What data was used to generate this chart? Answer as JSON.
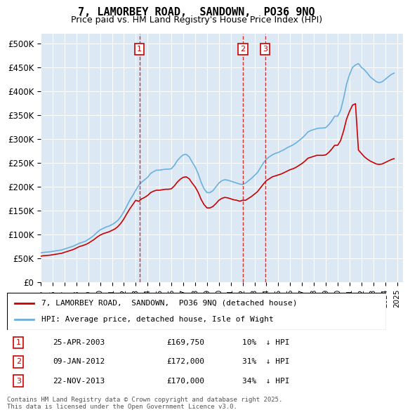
{
  "title": "7, LAMORBEY ROAD,  SANDOWN,  PO36 9NQ",
  "subtitle": "Price paid vs. HM Land Registry's House Price Index (HPI)",
  "ylabel_ticks": [
    "£0",
    "£50K",
    "£100K",
    "£150K",
    "£200K",
    "£250K",
    "£300K",
    "£350K",
    "£400K",
    "£450K",
    "£500K"
  ],
  "ytick_values": [
    0,
    50000,
    100000,
    150000,
    200000,
    250000,
    300000,
    350000,
    400000,
    450000,
    500000
  ],
  "ylim": [
    0,
    520000
  ],
  "xlim_start": 1995,
  "xlim_end": 2025.5,
  "background_color": "#dce9f5",
  "plot_bg_color": "#dce9f5",
  "hpi_color": "#6ab0de",
  "price_color": "#cc0000",
  "sale_marker_color": "#cc0000",
  "vline_color": "#cc0000",
  "box_color": "#cc0000",
  "legend_box": true,
  "legend_entries": [
    "7, LAMORBEY ROAD,  SANDOWN,  PO36 9NQ (detached house)",
    "HPI: Average price, detached house, Isle of Wight"
  ],
  "sales": [
    {
      "num": 1,
      "date": "25-APR-2003",
      "price": 169750,
      "pct": "10%",
      "dir": "↓",
      "year": 2003.31
    },
    {
      "num": 2,
      "date": "09-JAN-2012",
      "price": 172000,
      "pct": "31%",
      "dir": "↓",
      "year": 2012.03
    },
    {
      "num": 3,
      "date": "22-NOV-2013",
      "price": 170000,
      "pct": "34%",
      "dir": "↓",
      "year": 2013.89
    }
  ],
  "footer": "Contains HM Land Registry data © Crown copyright and database right 2025.\nThis data is licensed under the Open Government Licence v3.0.",
  "hpi_data_x": [
    1995,
    1995.25,
    1995.5,
    1995.75,
    1996,
    1996.25,
    1996.5,
    1996.75,
    1997,
    1997.25,
    1997.5,
    1997.75,
    1998,
    1998.25,
    1998.5,
    1998.75,
    1999,
    1999.25,
    1999.5,
    1999.75,
    2000,
    2000.25,
    2000.5,
    2000.75,
    2001,
    2001.25,
    2001.5,
    2001.75,
    2002,
    2002.25,
    2002.5,
    2002.75,
    2003,
    2003.25,
    2003.5,
    2003.75,
    2004,
    2004.25,
    2004.5,
    2004.75,
    2005,
    2005.25,
    2005.5,
    2005.75,
    2006,
    2006.25,
    2006.5,
    2006.75,
    2007,
    2007.25,
    2007.5,
    2007.75,
    2008,
    2008.25,
    2008.5,
    2008.75,
    2009,
    2009.25,
    2009.5,
    2009.75,
    2010,
    2010.25,
    2010.5,
    2010.75,
    2011,
    2011.25,
    2011.5,
    2011.75,
    2012,
    2012.25,
    2012.5,
    2012.75,
    2013,
    2013.25,
    2013.5,
    2013.75,
    2014,
    2014.25,
    2014.5,
    2014.75,
    2015,
    2015.25,
    2015.5,
    2015.75,
    2016,
    2016.25,
    2016.5,
    2016.75,
    2017,
    2017.25,
    2017.5,
    2017.75,
    2018,
    2018.25,
    2018.5,
    2018.75,
    2019,
    2019.25,
    2019.5,
    2019.75,
    2020,
    2020.25,
    2020.5,
    2020.75,
    2021,
    2021.25,
    2021.5,
    2021.75,
    2022,
    2022.25,
    2022.5,
    2022.75,
    2023,
    2023.25,
    2023.5,
    2023.75,
    2024,
    2024.25,
    2024.5,
    2024.75
  ],
  "hpi_data_y": [
    62000,
    63000,
    63500,
    64000,
    65000,
    66000,
    67000,
    68000,
    70000,
    72000,
    74000,
    76000,
    79000,
    82000,
    84000,
    86000,
    90000,
    94000,
    99000,
    105000,
    110000,
    113000,
    116000,
    118000,
    121000,
    125000,
    130000,
    138000,
    148000,
    160000,
    172000,
    182000,
    193000,
    203000,
    210000,
    215000,
    220000,
    228000,
    232000,
    235000,
    235000,
    236000,
    237000,
    237000,
    238000,
    245000,
    255000,
    262000,
    267000,
    268000,
    263000,
    252000,
    242000,
    228000,
    210000,
    196000,
    188000,
    188000,
    192000,
    200000,
    208000,
    213000,
    215000,
    214000,
    212000,
    210000,
    208000,
    206000,
    205000,
    208000,
    213000,
    218000,
    224000,
    230000,
    240000,
    250000,
    258000,
    263000,
    267000,
    270000,
    272000,
    275000,
    278000,
    282000,
    285000,
    288000,
    292000,
    297000,
    302000,
    308000,
    315000,
    318000,
    320000,
    322000,
    323000,
    323000,
    324000,
    330000,
    338000,
    348000,
    348000,
    360000,
    385000,
    415000,
    435000,
    450000,
    455000,
    458000,
    450000,
    445000,
    438000,
    430000,
    425000,
    420000,
    418000,
    420000,
    425000,
    430000,
    435000,
    438000
  ],
  "price_data_x": [
    1995,
    1995.25,
    1995.5,
    1995.75,
    1996,
    1996.25,
    1996.5,
    1996.75,
    1997,
    1997.25,
    1997.5,
    1997.75,
    1998,
    1998.25,
    1998.5,
    1998.75,
    1999,
    1999.25,
    1999.5,
    1999.75,
    2000,
    2000.25,
    2000.5,
    2000.75,
    2001,
    2001.25,
    2001.5,
    2001.75,
    2002,
    2002.25,
    2002.5,
    2002.75,
    2003,
    2003.25,
    2003.5,
    2003.75,
    2004,
    2004.25,
    2004.5,
    2004.75,
    2005,
    2005.25,
    2005.5,
    2005.75,
    2006,
    2006.25,
    2006.5,
    2006.75,
    2007,
    2007.25,
    2007.5,
    2007.75,
    2008,
    2008.25,
    2008.5,
    2008.75,
    2009,
    2009.25,
    2009.5,
    2009.75,
    2010,
    2010.25,
    2010.5,
    2010.75,
    2011,
    2011.25,
    2011.5,
    2011.75,
    2012,
    2012.25,
    2012.5,
    2012.75,
    2013,
    2013.25,
    2013.5,
    2013.75,
    2014,
    2014.25,
    2014.5,
    2014.75,
    2015,
    2015.25,
    2015.5,
    2015.75,
    2016,
    2016.25,
    2016.5,
    2016.75,
    2017,
    2017.25,
    2017.5,
    2017.75,
    2018,
    2018.25,
    2018.5,
    2018.75,
    2019,
    2019.25,
    2019.5,
    2019.75,
    2020,
    2020.25,
    2020.5,
    2020.75,
    2021,
    2021.25,
    2021.5,
    2021.75,
    2022,
    2022.25,
    2022.5,
    2022.75,
    2023,
    2023.25,
    2023.5,
    2023.75,
    2024,
    2024.25,
    2024.5,
    2024.75
  ],
  "price_data_y": [
    55000,
    56000,
    56500,
    57000,
    58000,
    59000,
    60000,
    61000,
    63000,
    65000,
    67000,
    69000,
    72000,
    75000,
    77000,
    79000,
    82000,
    86000,
    90000,
    95000,
    99000,
    102000,
    104000,
    106000,
    109000,
    112000,
    117000,
    124000,
    133000,
    144000,
    154000,
    163000,
    172000,
    169750,
    175000,
    178000,
    182000,
    188000,
    191000,
    193000,
    193000,
    194000,
    195000,
    195000,
    196000,
    202000,
    210000,
    216000,
    220000,
    221000,
    217000,
    208000,
    200000,
    189000,
    174000,
    163000,
    156000,
    156000,
    159000,
    165000,
    172000,
    176000,
    178000,
    177000,
    175000,
    173000,
    172000,
    170000,
    172000,
    172000,
    176000,
    180000,
    185000,
    190000,
    198000,
    206000,
    213000,
    217000,
    221000,
    223000,
    225000,
    227000,
    230000,
    233000,
    236000,
    238000,
    241000,
    245000,
    249000,
    254000,
    260000,
    262000,
    264000,
    266000,
    266000,
    266000,
    267000,
    272000,
    279000,
    287000,
    287000,
    297000,
    317000,
    342000,
    358000,
    371000,
    374000,
    277000,
    270000,
    263000,
    258000,
    254000,
    251000,
    248000,
    247000,
    248000,
    251000,
    254000,
    257000,
    259000
  ]
}
